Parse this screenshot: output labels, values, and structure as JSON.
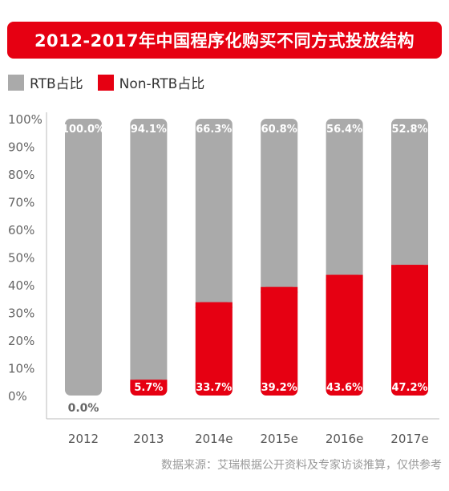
{
  "title": "2012-2017年中国程序化购买不同方式投放结构",
  "source": "数据来源：艾瑞根据公开资料及专家访谈推算，仅供参考",
  "colors": {
    "rtb": "#aaaaaa",
    "non_rtb": "#e60012"
  },
  "chart_data": {
    "type": "bar",
    "stacked": true,
    "categories": [
      "2012",
      "2013",
      "2014e",
      "2015e",
      "2016e",
      "2017e"
    ],
    "series": [
      {
        "name": "RTB占比",
        "values": [
          100.0,
          94.1,
          66.3,
          60.8,
          56.4,
          52.8
        ],
        "labels": [
          "100.0%",
          "94.1%",
          "66.3%",
          "60.8%",
          "56.4%",
          "52.8%"
        ]
      },
      {
        "name": "Non-RTB占比",
        "values": [
          0.0,
          5.7,
          33.7,
          39.2,
          43.6,
          47.2
        ],
        "labels": [
          "0.0%",
          "5.7%",
          "33.7%",
          "39.2%",
          "43.6%",
          "47.2%"
        ]
      }
    ],
    "ylim": [
      0,
      100
    ],
    "yticks": [
      "0%",
      "10%",
      "20%",
      "30%",
      "40%",
      "50%",
      "60%",
      "70%",
      "80%",
      "90%",
      "100%"
    ],
    "legend_position": "top-left",
    "grid": false
  }
}
